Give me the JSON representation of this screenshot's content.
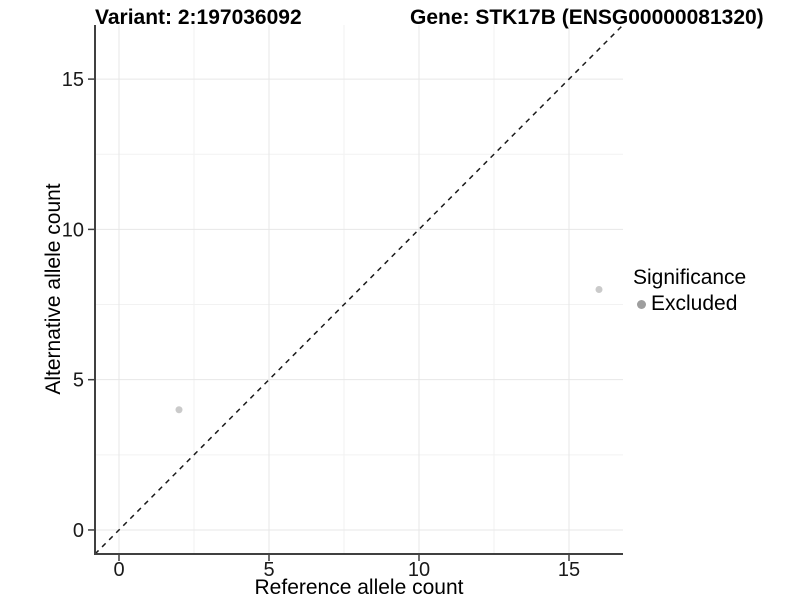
{
  "titles": {
    "variant": "Variant: 2:197036092",
    "gene": "Gene: STK17B (ENSG00000081320)"
  },
  "legend": {
    "title": "Significance",
    "items": [
      {
        "label": "Excluded",
        "dot_color": "#9e9e9e"
      }
    ]
  },
  "chart_data": {
    "type": "scatter",
    "title": "Variant: 2:197036092   Gene: STK17B (ENSG00000081320)",
    "xlabel": "Reference allele count",
    "ylabel": "Alternative allele count",
    "xlim": [
      -0.8,
      16.8
    ],
    "ylim": [
      -0.8,
      16.8
    ],
    "x_ticks": [
      0,
      5,
      10,
      15
    ],
    "y_ticks": [
      0,
      5,
      10,
      15
    ],
    "x_minor_ticks": [
      2.5,
      7.5,
      12.5
    ],
    "y_minor_ticks": [
      2.5,
      7.5,
      12.5
    ],
    "grid": true,
    "legend_position": "right",
    "series": [
      {
        "name": "Excluded",
        "color": "#cacaca",
        "points": [
          {
            "x": 2,
            "y": 4
          },
          {
            "x": 16,
            "y": 8
          }
        ]
      }
    ],
    "reference_line": {
      "type": "identity",
      "equation": "y = x",
      "style": "dashed",
      "color": "#1a1a1a"
    }
  },
  "style": {
    "background": "#ffffff",
    "axis_line_color": "#404040",
    "tick_color": "#404040",
    "tick_label_color": "#1a1a1a",
    "major_grid_color": "#e7e7e7",
    "minor_grid_color": "#f2f2f2",
    "point_color": "#cacaca",
    "legend_dot_color": "#9e9e9e",
    "dashed_line_color": "#1a1a1a"
  }
}
